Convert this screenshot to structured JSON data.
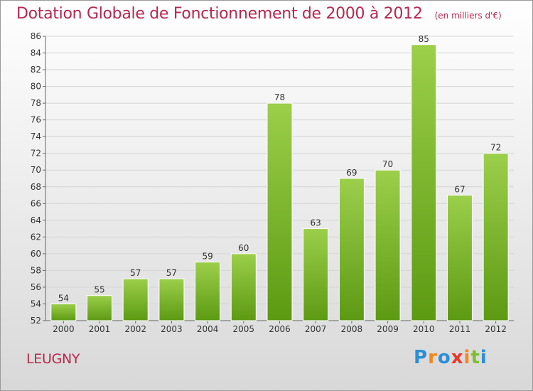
{
  "title": "Dotation Globale de Fonctionnement de 2000 à 2012",
  "unit_note": "(en milliers d'€)",
  "place": "LEUGNY",
  "logo": {
    "text": "Proxiti",
    "letters": [
      {
        "ch": "P",
        "color": "#2a8fd6"
      },
      {
        "ch": "r",
        "color": "#f08a1c"
      },
      {
        "ch": "o",
        "color": "#2a8fd6"
      },
      {
        "ch": "x",
        "color": "#e8382c"
      },
      {
        "ch": "i",
        "color": "#f08a1c"
      },
      {
        "ch": "t",
        "color": "#7bbf2a"
      },
      {
        "ch": "i",
        "color": "#2a8fd6"
      }
    ]
  },
  "colors": {
    "title": "#b4284f",
    "bar_light": "#9ccf4a",
    "bar_dark": "#5c9a12",
    "grid": "#d4d4d4"
  },
  "chart_data": {
    "type": "bar",
    "title": "Dotation Globale de Fonctionnement de 2000 à 2012",
    "xlabel": "",
    "ylabel": "",
    "categories": [
      "2000",
      "2001",
      "2002",
      "2003",
      "2004",
      "2005",
      "2006",
      "2007",
      "2008",
      "2009",
      "2010",
      "2011",
      "2012"
    ],
    "values": [
      54,
      55,
      57,
      57,
      59,
      60,
      78,
      63,
      69,
      70,
      85,
      67,
      72
    ],
    "ylim": [
      52,
      86
    ],
    "yticks": [
      52,
      54,
      56,
      58,
      60,
      62,
      64,
      66,
      68,
      70,
      72,
      74,
      76,
      78,
      80,
      82,
      84,
      86
    ],
    "grid": true,
    "data_labels": true
  }
}
